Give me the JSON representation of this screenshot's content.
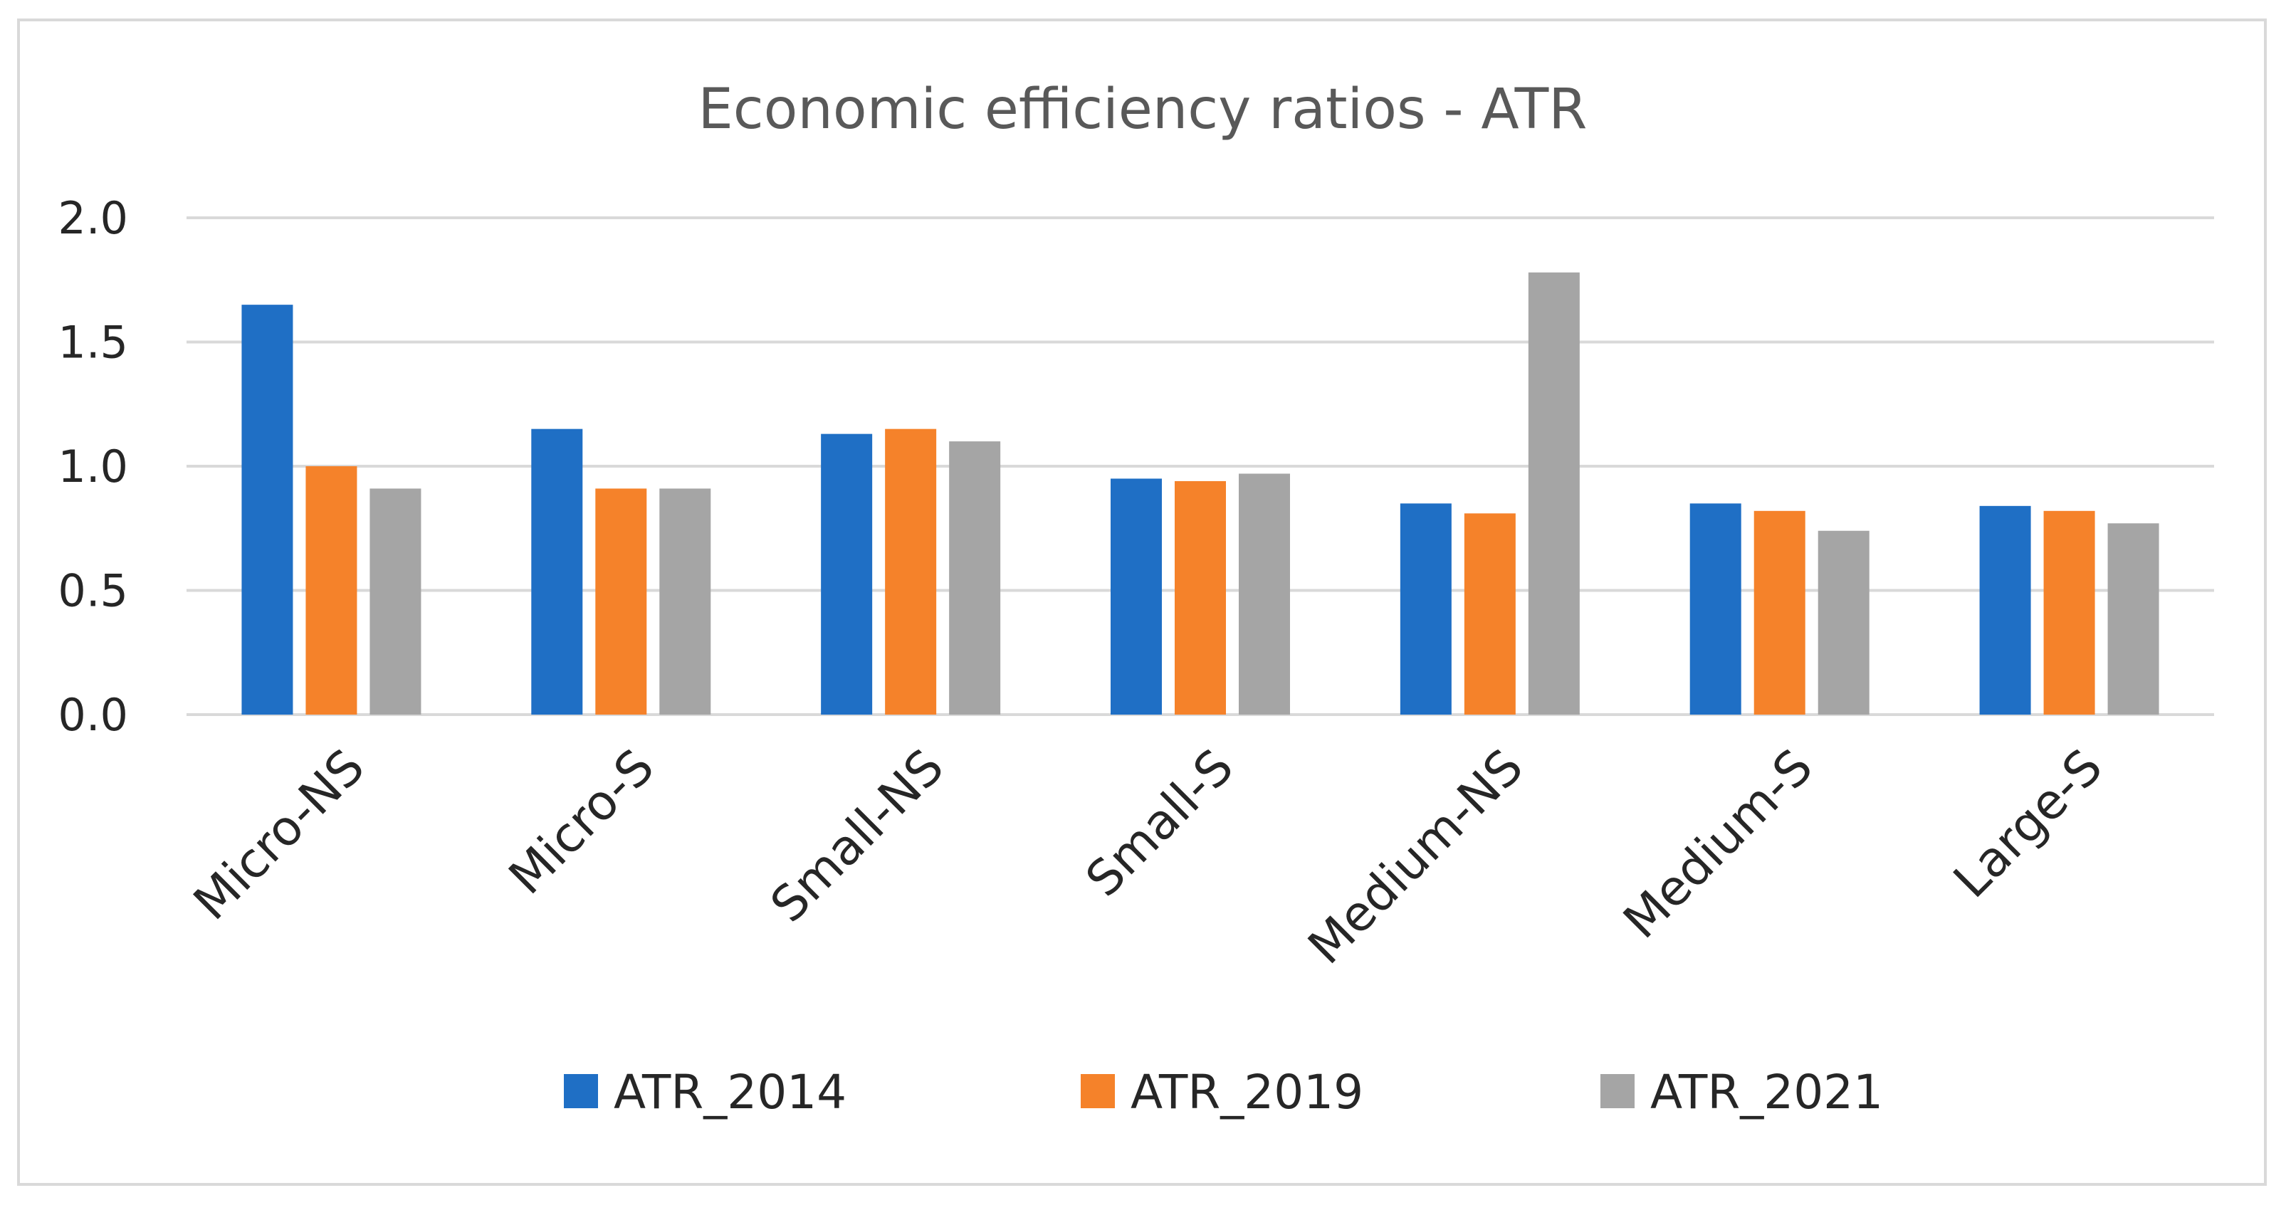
{
  "chart_data": {
    "type": "bar",
    "title": "Economic efficiency ratios - ATR",
    "xlabel": "",
    "ylabel": "",
    "ylim": [
      0,
      2.0
    ],
    "yticks": [
      "0.0",
      "0.5",
      "1.0",
      "1.5",
      "2.0"
    ],
    "ytick_values": [
      0,
      0.5,
      1.0,
      1.5,
      2.0
    ],
    "grid": true,
    "legend_position": "bottom",
    "categories": [
      "Micro-NS",
      "Micro-S",
      "Small-NS",
      "Small-S",
      "Medium-NS",
      "Medium-S",
      "Large-S"
    ],
    "series": [
      {
        "name": "ATR_2014",
        "color": "#1f6fc5",
        "values": [
          1.65,
          1.15,
          1.13,
          0.95,
          0.85,
          0.85,
          0.84
        ]
      },
      {
        "name": "ATR_2019",
        "color": "#f5822a",
        "values": [
          1.0,
          0.91,
          1.15,
          0.94,
          0.81,
          0.82,
          0.82
        ]
      },
      {
        "name": "ATR_2021",
        "color": "#a5a5a5",
        "values": [
          0.91,
          0.91,
          1.1,
          0.97,
          1.78,
          0.74,
          0.77
        ]
      }
    ]
  }
}
